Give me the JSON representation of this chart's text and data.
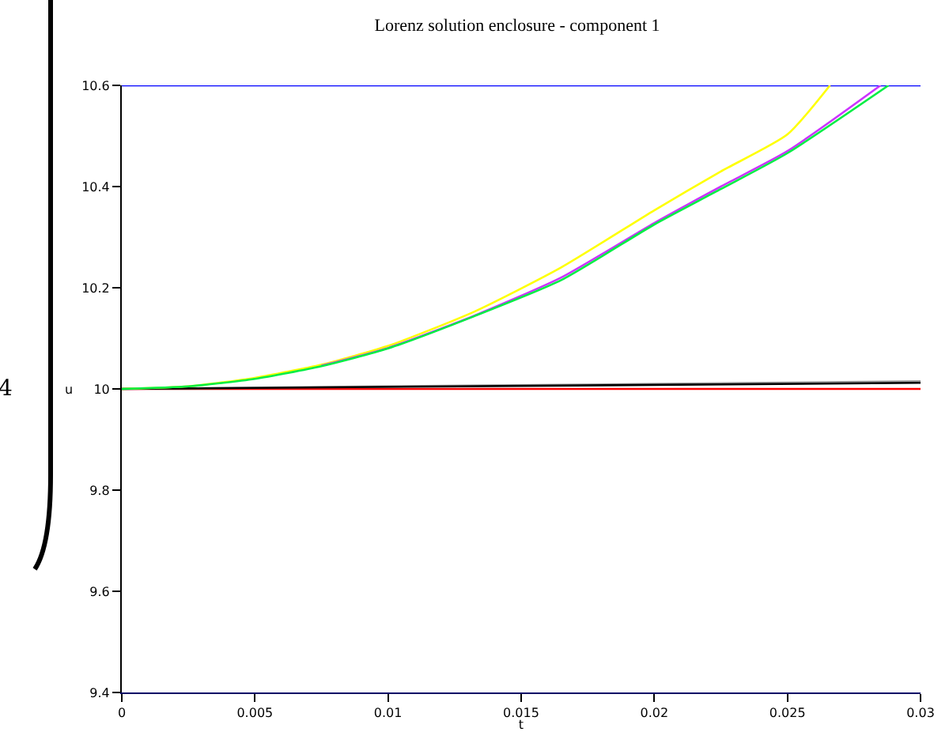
{
  "chart_data": {
    "type": "line",
    "title": "Lorenz solution enclosure - component 1",
    "xlabel": "t",
    "ylabel": "u",
    "annotations": [
      "4"
    ],
    "xlim": [
      0,
      0.03
    ],
    "ylim": [
      9.4,
      10.6
    ],
    "xticks": [
      0,
      0.005,
      0.01,
      0.015,
      0.02,
      0.025,
      0.03
    ],
    "yticks": [
      9.4,
      9.6,
      9.8,
      10,
      10.2,
      10.4,
      10.6
    ],
    "grid": false,
    "marker": "none",
    "line_style": "solid",
    "series": [
      {
        "color": "#0000ff",
        "x": [
          0,
          0.03
        ],
        "values": [
          10.6,
          10.6
        ]
      },
      {
        "color": "#ff0000",
        "x": [
          0,
          0.03
        ],
        "values": [
          10,
          10
        ]
      },
      {
        "color": "#999999",
        "x": [
          0,
          0.03
        ],
        "values": [
          10,
          10.015
        ]
      },
      {
        "color": "#000000",
        "x": [
          0,
          0.03
        ],
        "values": [
          10,
          10.012
        ]
      },
      {
        "color": "#ffff00",
        "x": [
          0,
          0.0025,
          0.005,
          0.0075,
          0.01,
          0.01325,
          0.0165,
          0.02,
          0.0225,
          0.025,
          0.0266
        ],
        "values": [
          10,
          10.005,
          10.022,
          10.048,
          10.085,
          10.153,
          10.24,
          10.353,
          10.43,
          10.503,
          10.6
        ]
      },
      {
        "color": "#cc33ff",
        "x": [
          0.0075,
          0.01,
          0.01325,
          0.0165,
          0.02,
          0.0225,
          0.025,
          0.0285
        ],
        "values": [
          10.046,
          10.081,
          10.145,
          10.22,
          10.328,
          10.4,
          10.47,
          10.6
        ]
      },
      {
        "color": "#00ee44",
        "x": [
          0,
          0.0025,
          0.005,
          0.0075,
          0.01,
          0.01325,
          0.0165,
          0.02,
          0.0225,
          0.025,
          0.0288
        ],
        "values": [
          10,
          10.005,
          10.02,
          10.045,
          10.08,
          10.144,
          10.215,
          10.325,
          10.395,
          10.466,
          10.6
        ]
      }
    ]
  }
}
